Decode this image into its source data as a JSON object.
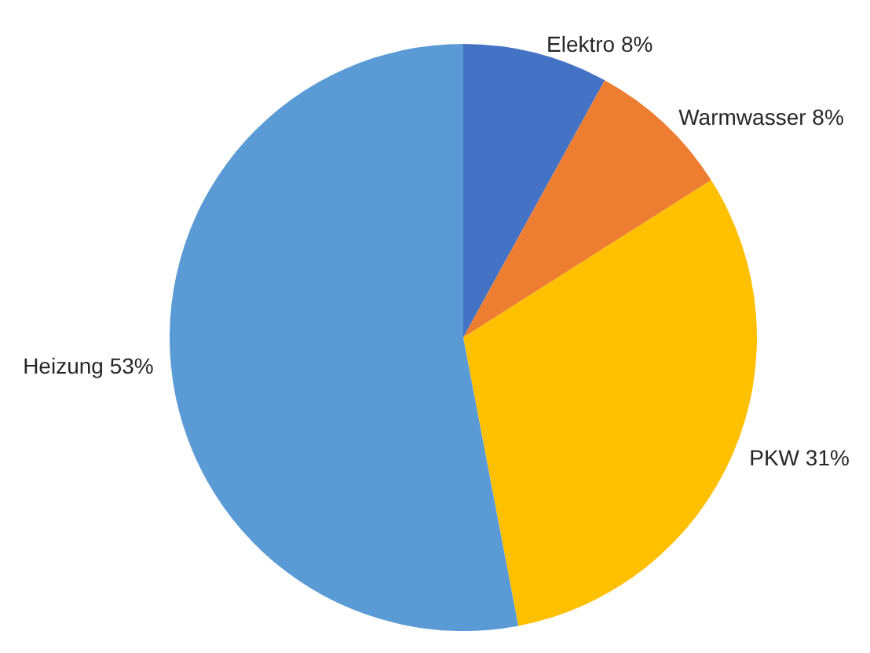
{
  "chart_data": {
    "type": "pie",
    "categories": [
      "Elektro",
      "Warmwasser",
      "PKW",
      "Heizung"
    ],
    "values": [
      8,
      8,
      31,
      53
    ],
    "value_labels": [
      "8%",
      "8%",
      "31%",
      "53%"
    ],
    "colors": [
      "#4472c4",
      "#ed7d31",
      "#ffc000",
      "#5b9bd5"
    ],
    "legend": false
  }
}
